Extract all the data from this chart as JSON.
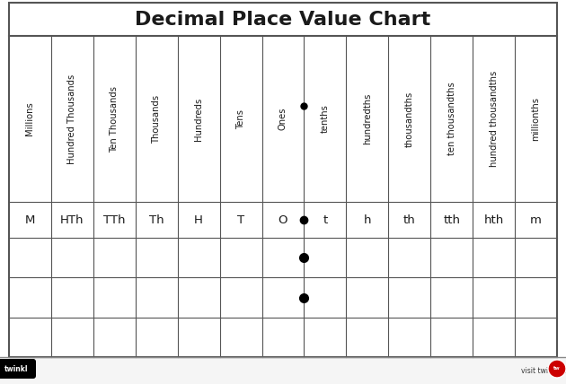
{
  "title": "Decimal Place Value Chart",
  "columns": [
    "Millions",
    "Hundred Thousands",
    "Ten Thousands",
    "Thousands",
    "Hundreds",
    "Tens",
    "Ones",
    "tenths",
    "hundredths",
    "thousandths",
    "ten thousandths",
    "hundred thousandths",
    "millionths"
  ],
  "abbrevs": [
    "M",
    "HTh",
    "TTh",
    "Th",
    "H",
    "T",
    "O",
    "t",
    "h",
    "th",
    "tth",
    "hth",
    "m"
  ],
  "decimal_dot_col": 6,
  "dot_rows": [
    1,
    2
  ],
  "n_data_rows": 3,
  "bg_color": "#ffffff",
  "border_color": "#555555",
  "text_color": "#1a1a1a",
  "title_color": "#1a1a1a",
  "title_fontsize": 16,
  "header_fontsize": 7.2,
  "abbrev_fontsize": 9.5,
  "dot_markersize_header": 5,
  "dot_markersize_data": 7
}
